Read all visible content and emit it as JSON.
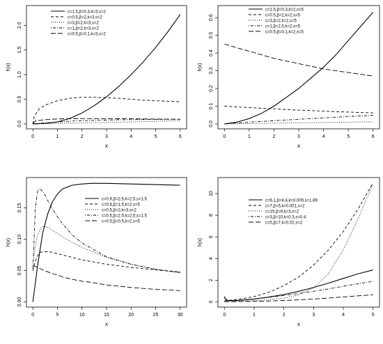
{
  "chart_data": [
    {
      "type": "line",
      "xlabel": "x",
      "ylabel": "h(x)",
      "xlim": [
        0,
        6
      ],
      "ylim": [
        0,
        2.3
      ],
      "xticks": [
        "0",
        "1",
        "2",
        "3",
        "4",
        "5",
        "6"
      ],
      "yticks": [
        "0.0",
        "0.5",
        "1.0",
        "1.5",
        "2.0"
      ],
      "xtick_values": [
        0,
        1,
        2,
        3,
        4,
        5,
        6
      ],
      "ytick_values": [
        0,
        0.5,
        1.0,
        1.5,
        2.0
      ],
      "legend_position": "top-left",
      "grid": false,
      "series": [
        {
          "name": "c=1.5,β=0.3,k=3,s=2",
          "style": "solid",
          "x": [
            0,
            0.5,
            1,
            1.5,
            2,
            2.5,
            3,
            3.5,
            4,
            4.5,
            5,
            5.5,
            6
          ],
          "y": [
            0,
            0.01,
            0.04,
            0.11,
            0.22,
            0.37,
            0.55,
            0.76,
            1.0,
            1.26,
            1.55,
            1.87,
            2.22
          ]
        },
        {
          "name": "c=0.5,β=2,k=3,s=2",
          "style": "dashed",
          "x": [
            0,
            0.05,
            0.25,
            0.5,
            1,
            1.5,
            2,
            2.5,
            3,
            3.5,
            4,
            4.5,
            5,
            5.5,
            6
          ],
          "y": [
            0,
            0.15,
            0.3,
            0.38,
            0.47,
            0.52,
            0.54,
            0.54,
            0.53,
            0.52,
            0.5,
            0.48,
            0.47,
            0.46,
            0.45
          ]
        },
        {
          "name": "c=3,β=2,k=3,s=2",
          "style": "dotted",
          "x": [
            0,
            0.5,
            1,
            1.5,
            2,
            2.5,
            3,
            3.5,
            4,
            4.5,
            5,
            5.5,
            6
          ],
          "y": [
            0,
            0.005,
            0.01,
            0.015,
            0.02,
            0.025,
            0.03,
            0.035,
            0.04,
            0.047,
            0.053,
            0.06,
            0.067
          ]
        },
        {
          "name": "c=1,β=2,k=3,s=2",
          "style": "dotdash",
          "x": [
            0,
            0.5,
            1,
            1.5,
            2,
            2.5,
            3,
            3.5,
            4,
            4.5,
            5,
            5.5,
            6
          ],
          "y": [
            0,
            0.02,
            0.04,
            0.055,
            0.065,
            0.072,
            0.078,
            0.083,
            0.087,
            0.09,
            0.092,
            0.094,
            0.095
          ]
        },
        {
          "name": "c=0.5,β=0.1,k=3,s=2",
          "style": "longdash",
          "x": [
            0,
            0.1,
            0.5,
            1,
            1.5,
            2,
            2.5,
            3,
            3.5,
            4,
            4.5,
            5,
            5.5,
            6
          ],
          "y": [
            0,
            0.06,
            0.085,
            0.1,
            0.105,
            0.107,
            0.107,
            0.106,
            0.105,
            0.103,
            0.1,
            0.098,
            0.096,
            0.094
          ]
        }
      ]
    },
    {
      "type": "line",
      "xlabel": "x",
      "ylabel": "h(x)",
      "xlim": [
        0,
        6
      ],
      "ylim": [
        0,
        0.64
      ],
      "xticks": [
        "0",
        "1",
        "2",
        "3",
        "4",
        "5",
        "6"
      ],
      "yticks": [
        "0.0",
        "0.1",
        "0.2",
        "0.3",
        "0.4",
        "0.5",
        "0.6"
      ],
      "xtick_values": [
        0,
        1,
        2,
        3,
        4,
        5,
        6
      ],
      "ytick_values": [
        0,
        0.1,
        0.2,
        0.3,
        0.4,
        0.5,
        0.6
      ],
      "legend_position": "top-right",
      "grid": false,
      "series": [
        {
          "name": "c=1.5,β=0.3,k=2,s=5",
          "style": "solid",
          "x": [
            0,
            0.5,
            1,
            1.5,
            2,
            2.5,
            3,
            3.5,
            4,
            4.5,
            5,
            5.5,
            6
          ],
          "y": [
            0,
            0.01,
            0.03,
            0.06,
            0.1,
            0.15,
            0.2,
            0.26,
            0.32,
            0.39,
            0.47,
            0.55,
            0.63
          ]
        },
        {
          "name": "c=0.5,β=2,k=2,s=5",
          "style": "dashed",
          "x": [
            0,
            0.5,
            1,
            1.5,
            2,
            2.5,
            3,
            3.5,
            4,
            4.5,
            5,
            5.5,
            6
          ],
          "y": [
            0.1,
            0.096,
            0.092,
            0.088,
            0.085,
            0.081,
            0.078,
            0.075,
            0.072,
            0.069,
            0.067,
            0.064,
            0.062
          ]
        },
        {
          "name": "c=3,β=2,k=2,s=5",
          "style": "dotted",
          "x": [
            0,
            0.5,
            1,
            1.5,
            2,
            2.5,
            3,
            3.5,
            4,
            4.5,
            5,
            5.5,
            6
          ],
          "y": [
            0,
            0.001,
            0.002,
            0.003,
            0.004,
            0.005,
            0.006,
            0.007,
            0.008,
            0.009,
            0.01,
            0.011,
            0.012
          ]
        },
        {
          "name": "c=1,β=2.5,k=2,s=5",
          "style": "dotdash",
          "x": [
            0,
            0.5,
            1,
            1.5,
            2,
            2.5,
            3,
            3.5,
            4,
            4.5,
            5,
            5.5,
            6
          ],
          "y": [
            0,
            0.005,
            0.01,
            0.014,
            0.018,
            0.022,
            0.026,
            0.03,
            0.034,
            0.038,
            0.042,
            0.045,
            0.049
          ]
        },
        {
          "name": "c=0.5,β=0.1,k=2,s=5",
          "style": "longdash",
          "x": [
            0,
            0.5,
            1,
            1.5,
            2,
            2.5,
            3,
            3.5,
            4,
            4.5,
            5,
            5.5,
            6
          ],
          "y": [
            0.45,
            0.43,
            0.41,
            0.39,
            0.37,
            0.355,
            0.34,
            0.325,
            0.31,
            0.3,
            0.29,
            0.28,
            0.27
          ]
        }
      ]
    },
    {
      "type": "line",
      "xlabel": "x",
      "ylabel": "h(x)",
      "xlim": [
        0,
        30
      ],
      "ylim": [
        0,
        0.19
      ],
      "xticks": [
        "0",
        "5",
        "10",
        "15",
        "20",
        "25",
        "30"
      ],
      "yticks": [
        "0.00",
        "0.05",
        "0.10",
        "0.15"
      ],
      "xtick_values": [
        0,
        5,
        10,
        15,
        20,
        25,
        30
      ],
      "ytick_values": [
        0,
        0.05,
        0.1,
        0.15
      ],
      "legend_position": "top-right",
      "grid": false,
      "series": [
        {
          "name": "c=0.9,β=2.5,k=2.5,s=1.5",
          "style": "solid",
          "x": [
            0,
            1,
            2,
            3,
            4,
            5,
            6,
            8,
            10,
            12,
            15,
            20,
            25,
            30
          ],
          "y": [
            0,
            0.06,
            0.11,
            0.14,
            0.16,
            0.172,
            0.18,
            0.186,
            0.188,
            0.189,
            0.189,
            0.188,
            0.187,
            0.186
          ]
        },
        {
          "name": "c=0.8,β=1.5,k=2,s=5",
          "style": "dashed",
          "x": [
            0,
            0.5,
            1,
            1.5,
            2,
            3,
            4,
            5,
            6,
            8,
            10,
            15,
            20,
            25,
            30
          ],
          "y": [
            0.05,
            0.065,
            0.074,
            0.079,
            0.08,
            0.08,
            0.079,
            0.077,
            0.075,
            0.071,
            0.067,
            0.06,
            0.055,
            0.051,
            0.048
          ]
        },
        {
          "name": "c=0.5,β=2,k=3,s=2",
          "style": "dotted",
          "x": [
            0,
            0.5,
            1,
            1.5,
            2,
            2.5,
            3,
            4,
            5,
            6,
            8,
            10,
            15,
            20,
            25,
            30
          ],
          "y": [
            0.06,
            0.09,
            0.108,
            0.116,
            0.12,
            0.12,
            0.119,
            0.114,
            0.109,
            0.104,
            0.095,
            0.087,
            0.071,
            0.06,
            0.052,
            0.046
          ]
        },
        {
          "name": "c=0.5,β=2.5,k=2.5,s=1.5",
          "style": "dotdash",
          "x": [
            0,
            0.5,
            1,
            1.5,
            2,
            2.5,
            3,
            4,
            5,
            6,
            8,
            10,
            15,
            20,
            25,
            30
          ],
          "y": [
            0.05,
            0.15,
            0.178,
            0.18,
            0.176,
            0.17,
            0.162,
            0.148,
            0.136,
            0.125,
            0.107,
            0.094,
            0.072,
            0.06,
            0.052,
            0.047
          ]
        },
        {
          "name": "c=0.5,β=0.5,k=2,s=5",
          "style": "longdash",
          "x": [
            0,
            1,
            2,
            3,
            4,
            5,
            6,
            8,
            10,
            12,
            15,
            20,
            25,
            30
          ],
          "y": [
            0.058,
            0.055,
            0.051,
            0.048,
            0.045,
            0.043,
            0.04,
            0.036,
            0.033,
            0.031,
            0.027,
            0.023,
            0.02,
            0.018
          ]
        }
      ]
    },
    {
      "type": "line",
      "xlabel": "x",
      "ylabel": "h(x)",
      "xlim": [
        0,
        5
      ],
      "ylim": [
        0,
        11
      ],
      "xticks": [
        "0",
        "1",
        "2",
        "3",
        "4",
        "5"
      ],
      "yticks": [
        "0",
        "2",
        "4",
        "6",
        "8",
        "10"
      ],
      "xtick_values": [
        0,
        1,
        2,
        3,
        4,
        5
      ],
      "ytick_values": [
        0,
        2,
        4,
        6,
        8,
        10
      ],
      "legend_position": "top-left",
      "grid": false,
      "series": [
        {
          "name": "c=6.1,β=4.4,k=0.009,s=1.89",
          "style": "solid",
          "x": [
            0,
            0.05,
            0.1,
            0.2,
            0.5,
            1,
            1.5,
            2,
            2.5,
            3,
            3.5,
            4,
            4.5,
            5
          ],
          "y": [
            0.5,
            0.25,
            0.15,
            0.12,
            0.15,
            0.27,
            0.45,
            0.68,
            0.98,
            1.33,
            1.73,
            2.17,
            2.6,
            2.95
          ]
        },
        {
          "name": "c=7,β=5,k=0.001,s=2",
          "style": "dashed",
          "x": [
            0,
            0.5,
            1,
            1.5,
            2,
            2.5,
            3,
            3.5,
            4,
            4.5,
            5
          ],
          "y": [
            0.1,
            0.25,
            0.5,
            0.9,
            1.5,
            2.3,
            3.4,
            4.8,
            6.5,
            8.6,
            11.0
          ]
        },
        {
          "name": "c=15,β=9,k=3,s=2",
          "style": "dotted",
          "x": [
            0,
            0.5,
            1,
            1.5,
            2,
            2.5,
            3,
            3.5,
            4,
            4.5,
            5
          ],
          "y": [
            0.05,
            0.08,
            0.12,
            0.2,
            0.35,
            0.65,
            1.3,
            2.6,
            4.8,
            7.7,
            10.9
          ]
        },
        {
          "name": "c=3,β=10,k=0.3,s=0.4",
          "style": "dotdash",
          "x": [
            0,
            0.05,
            0.1,
            0.5,
            1,
            1.5,
            2,
            2.5,
            3,
            3.5,
            4,
            4.5,
            5
          ],
          "y": [
            0.35,
            0.2,
            0.12,
            0.15,
            0.28,
            0.42,
            0.6,
            0.78,
            0.98,
            1.2,
            1.45,
            1.68,
            1.9
          ]
        },
        {
          "name": "c=5,β=7,k=0.02,s=2",
          "style": "longdash",
          "x": [
            0,
            0.5,
            1,
            1.5,
            2,
            2.5,
            3,
            3.5,
            4,
            4.5,
            5
          ],
          "y": [
            0.02,
            0.03,
            0.05,
            0.08,
            0.13,
            0.19,
            0.27,
            0.36,
            0.46,
            0.56,
            0.65
          ]
        }
      ]
    }
  ]
}
